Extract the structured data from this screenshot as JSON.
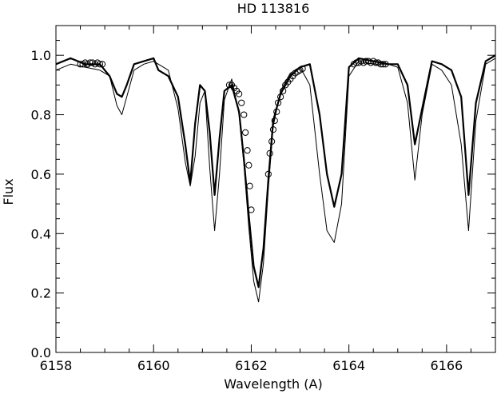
{
  "chart_data": {
    "type": "line",
    "title": "HD 113816",
    "xlabel": "Wavelength (A)",
    "ylabel": "Flux",
    "xlim": [
      6158,
      6167
    ],
    "ylim": [
      0,
      1.1
    ],
    "xticks": [
      6158,
      6160,
      6162,
      6164,
      6166
    ],
    "yticks": [
      0.0,
      0.2,
      0.4,
      0.6,
      0.8,
      1.0
    ],
    "xtick_labels": [
      "6158",
      "6160",
      "6162",
      "6164",
      "6166"
    ],
    "ytick_labels": [
      "0.0",
      "0.2",
      "0.4",
      "0.6",
      "0.8",
      "1.0"
    ],
    "grid": false,
    "series": [
      {
        "style": "thick",
        "x": [
          6158.0,
          6158.3,
          6158.6,
          6158.9,
          6159.1,
          6159.25,
          6159.35,
          6159.45,
          6159.6,
          6159.8,
          6160.0,
          6160.1,
          6160.3,
          6160.5,
          6160.65,
          6160.75,
          6160.85,
          6160.95,
          6161.05,
          6161.15,
          6161.25,
          6161.35,
          6161.45,
          6161.6,
          6161.75,
          6161.85,
          6161.95,
          6162.05,
          6162.15,
          6162.25,
          6162.35,
          6162.45,
          6162.6,
          6162.8,
          6163.0,
          6163.2,
          6163.4,
          6163.55,
          6163.7,
          6163.85,
          6164.0,
          6164.2,
          6164.5,
          6164.8,
          6165.0,
          6165.2,
          6165.35,
          6165.5,
          6165.7,
          6165.9,
          6166.1,
          6166.3,
          6166.45,
          6166.6,
          6166.8,
          6167.0
        ],
        "y": [
          0.97,
          0.99,
          0.97,
          0.97,
          0.93,
          0.87,
          0.86,
          0.9,
          0.97,
          0.98,
          0.99,
          0.95,
          0.93,
          0.86,
          0.7,
          0.57,
          0.77,
          0.9,
          0.88,
          0.74,
          0.53,
          0.72,
          0.88,
          0.9,
          0.81,
          0.65,
          0.46,
          0.29,
          0.22,
          0.35,
          0.58,
          0.78,
          0.87,
          0.93,
          0.96,
          0.97,
          0.8,
          0.6,
          0.49,
          0.6,
          0.96,
          0.99,
          0.98,
          0.97,
          0.97,
          0.9,
          0.7,
          0.82,
          0.98,
          0.97,
          0.95,
          0.86,
          0.53,
          0.84,
          0.98,
          1.0
        ]
      },
      {
        "style": "thin",
        "x": [
          6158.0,
          6158.3,
          6158.6,
          6158.9,
          6159.1,
          6159.25,
          6159.35,
          6159.45,
          6159.6,
          6159.8,
          6160.0,
          6160.1,
          6160.3,
          6160.5,
          6160.65,
          6160.75,
          6160.85,
          6160.95,
          6161.05,
          6161.15,
          6161.25,
          6161.35,
          6161.45,
          6161.6,
          6161.75,
          6161.85,
          6161.95,
          6162.05,
          6162.15,
          6162.25,
          6162.35,
          6162.45,
          6162.6,
          6162.8,
          6163.0,
          6163.2,
          6163.4,
          6163.55,
          6163.7,
          6163.85,
          6164.0,
          6164.2,
          6164.5,
          6164.8,
          6165.0,
          6165.2,
          6165.35,
          6165.5,
          6165.7,
          6165.9,
          6166.1,
          6166.3,
          6166.45,
          6166.6,
          6166.8,
          6167.0
        ],
        "y": [
          0.95,
          0.97,
          0.96,
          0.95,
          0.93,
          0.83,
          0.8,
          0.86,
          0.95,
          0.97,
          0.98,
          0.97,
          0.95,
          0.82,
          0.64,
          0.56,
          0.66,
          0.84,
          0.88,
          0.62,
          0.41,
          0.6,
          0.85,
          0.92,
          0.8,
          0.63,
          0.42,
          0.24,
          0.17,
          0.3,
          0.55,
          0.76,
          0.88,
          0.94,
          0.96,
          0.9,
          0.6,
          0.41,
          0.37,
          0.5,
          0.93,
          0.98,
          0.97,
          0.97,
          0.96,
          0.84,
          0.58,
          0.8,
          0.97,
          0.95,
          0.9,
          0.7,
          0.41,
          0.78,
          0.97,
          0.99
        ]
      },
      {
        "style": "circles",
        "x": [
          6158.5,
          6158.55,
          6158.6,
          6158.65,
          6158.7,
          6158.75,
          6158.8,
          6158.85,
          6158.9,
          6158.95,
          6161.55,
          6161.6,
          6161.65,
          6161.7,
          6161.75,
          6161.8,
          6161.85,
          6161.88,
          6161.92,
          6161.95,
          6161.97,
          6162.0,
          6162.35,
          6162.38,
          6162.42,
          6162.45,
          6162.48,
          6162.52,
          6162.55,
          6162.6,
          6162.65,
          6162.7,
          6162.75,
          6162.8,
          6162.85,
          6162.9,
          6162.95,
          6163.0,
          6163.05,
          6164.1,
          6164.15,
          6164.2,
          6164.25,
          6164.3,
          6164.35,
          6164.4,
          6164.45,
          6164.5,
          6164.55,
          6164.6,
          6164.65,
          6164.7,
          6164.75
        ],
        "y": [
          0.97,
          0.97,
          0.975,
          0.97,
          0.975,
          0.975,
          0.97,
          0.975,
          0.97,
          0.97,
          0.9,
          0.9,
          0.89,
          0.88,
          0.87,
          0.84,
          0.8,
          0.74,
          0.68,
          0.63,
          0.56,
          0.48,
          0.6,
          0.67,
          0.71,
          0.75,
          0.78,
          0.81,
          0.84,
          0.86,
          0.88,
          0.9,
          0.91,
          0.92,
          0.93,
          0.94,
          0.945,
          0.95,
          0.955,
          0.97,
          0.975,
          0.975,
          0.98,
          0.975,
          0.98,
          0.98,
          0.975,
          0.98,
          0.975,
          0.975,
          0.97,
          0.97,
          0.97
        ]
      }
    ]
  }
}
